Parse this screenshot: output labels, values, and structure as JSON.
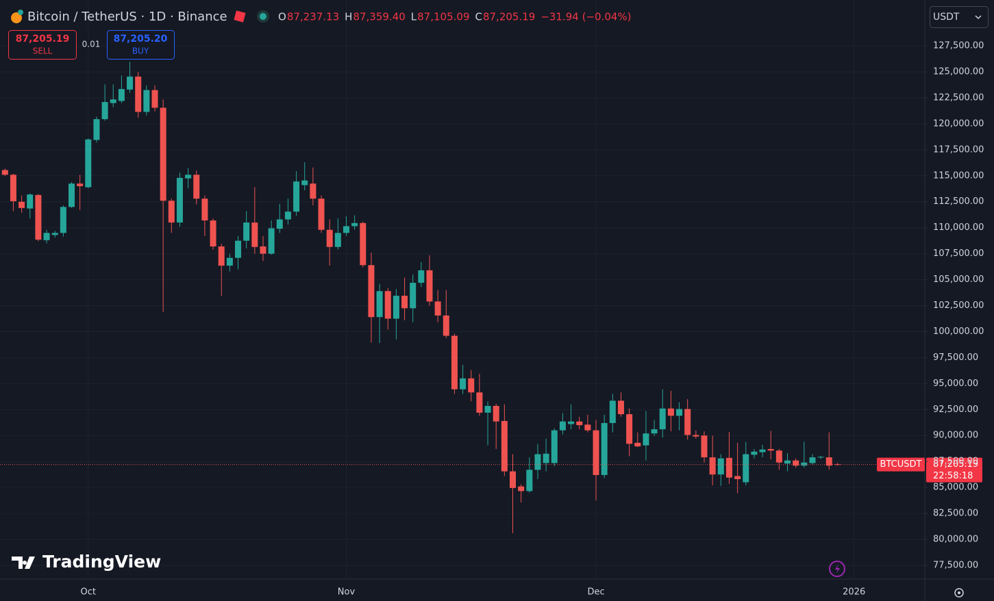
{
  "header": {
    "title": "Bitcoin / TetherUS · 1D · Binance",
    "ohlc": [
      {
        "letter": "O",
        "value": "87,237.13"
      },
      {
        "letter": "H",
        "value": "87,359.40"
      },
      {
        "letter": "L",
        "value": "87,105.09"
      },
      {
        "letter": "C",
        "value": "87,205.19"
      }
    ],
    "change": "−31.94 (−0.04%)",
    "currency": "USDT"
  },
  "trade": {
    "sell_price": "87,205.19",
    "sell": "SELL",
    "spread": "0.01",
    "buy_price": "87,205.20",
    "buy": "BUY"
  },
  "price_tag": {
    "symbol": "BTCUSDT",
    "price": "87,205.19",
    "countdown": "22:58:18"
  },
  "logo": "TradingView",
  "chart_data": {
    "type": "candlestick",
    "up_color": "#26a69a",
    "down_color": "#ef5350",
    "grid": true,
    "ylim": [
      76180,
      131920
    ],
    "yticks": [
      {
        "value": 77500,
        "label": "77,500.00"
      },
      {
        "value": 80000,
        "label": "80,000.00"
      },
      {
        "value": 82500,
        "label": "82,500.00"
      },
      {
        "value": 85000,
        "label": "85,000.00"
      },
      {
        "value": 87500,
        "label": "87,500.00"
      },
      {
        "value": 90000,
        "label": "90,000.00"
      },
      {
        "value": 92500,
        "label": "92,500.00"
      },
      {
        "value": 95000,
        "label": "95,000.00"
      },
      {
        "value": 97500,
        "label": "97,500.00"
      },
      {
        "value": 100000,
        "label": "100,000.00"
      },
      {
        "value": 102500,
        "label": "102,500.00"
      },
      {
        "value": 105000,
        "label": "105,000.00"
      },
      {
        "value": 107500,
        "label": "107,500.00"
      },
      {
        "value": 110000,
        "label": "110,000.00"
      },
      {
        "value": 112500,
        "label": "112,500.00"
      },
      {
        "value": 115000,
        "label": "115,000.00"
      },
      {
        "value": 117500,
        "label": "117,500.00"
      },
      {
        "value": 120000,
        "label": "120,000.00"
      },
      {
        "value": 122500,
        "label": "122,500.00"
      },
      {
        "value": 125000,
        "label": "125,000.00"
      },
      {
        "value": 127500,
        "label": "127,500.00"
      }
    ],
    "xlim": [
      -0.6,
      110.5
    ],
    "xticks": [
      {
        "value": 10,
        "label": "Oct"
      },
      {
        "value": 41,
        "label": "Nov"
      },
      {
        "value": 71,
        "label": "Dec"
      },
      {
        "value": 102,
        "label": "2026"
      }
    ],
    "open": [
      115550,
      115100,
      112500,
      111850,
      113150,
      108800,
      109300,
      109500,
      112000,
      114250,
      113900,
      118450,
      120450,
      122000,
      122200,
      123300,
      124550,
      121150,
      123250,
      121550,
      112600,
      110500,
      114750,
      115100,
      112800,
      110700,
      108200,
      106350,
      107100,
      108750,
      110500,
      108200,
      107500,
      109900,
      110800,
      111550,
      114100,
      114250,
      112800,
      109800,
      108150,
      109500,
      110150,
      110450,
      106400,
      101400,
      103900,
      101250,
      103450,
      102250,
      104700,
      105900,
      102900,
      101550,
      99600,
      94450,
      95500,
      94150,
      92200,
      92850,
      91400,
      86550,
      85100,
      84650,
      86700,
      87350,
      87350,
      90500,
      91100,
      91350,
      91050,
      90500,
      86200,
      91200,
      93350,
      92050,
      89300,
      89050,
      90200,
      90600,
      92600,
      91900,
      92550,
      90050,
      90000,
      87900,
      86250,
      87850,
      86100,
      85500,
      88150,
      88400,
      88700,
      88550,
      87300,
      87600,
      87100,
      87350,
      87900,
      87900,
      87237.13
    ],
    "high": [
      115700,
      115200,
      113100,
      113300,
      113250,
      109800,
      109700,
      112150,
      114400,
      115100,
      118600,
      120700,
      123800,
      123800,
      124650,
      125980,
      125000,
      123700,
      123700,
      122350,
      112800,
      115300,
      115750,
      115500,
      113100,
      110900,
      108450,
      107500,
      109200,
      111600,
      113900,
      109200,
      110700,
      112300,
      112800,
      115450,
      116300,
      115800,
      113100,
      110800,
      110900,
      111100,
      111200,
      110600,
      107600,
      104600,
      104200,
      104100,
      105200,
      105500,
      106700,
      107350,
      104000,
      104000,
      99800,
      96800,
      96300,
      95950,
      93300,
      93050,
      93000,
      88200,
      85300,
      87900,
      89200,
      89700,
      90700,
      92150,
      93000,
      91800,
      92000,
      91500,
      92000,
      94000,
      94150,
      92600,
      90300,
      92350,
      91500,
      94450,
      94300,
      93200,
      93500,
      90500,
      90400,
      90000,
      88200,
      90350,
      89300,
      89400,
      88700,
      89100,
      90450,
      88700,
      88300,
      87800,
      89400,
      88200,
      88050,
      90300,
      87359.4
    ],
    "low": [
      115000,
      111600,
      111450,
      110900,
      108700,
      108500,
      109050,
      109150,
      111900,
      111700,
      113800,
      118200,
      120300,
      121600,
      122000,
      123000,
      120600,
      120800,
      121200,
      101900,
      109500,
      110100,
      113800,
      112250,
      109200,
      107900,
      103450,
      105800,
      106000,
      108000,
      107500,
      106800,
      107400,
      109500,
      110300,
      111150,
      113600,
      112150,
      109500,
      106350,
      107900,
      109200,
      109800,
      106200,
      98950,
      98900,
      100200,
      99250,
      101100,
      100900,
      104300,
      102500,
      100900,
      99400,
      94000,
      94000,
      93300,
      91900,
      89050,
      88700,
      86100,
      80600,
      83550,
      84500,
      85800,
      86550,
      87050,
      90100,
      90600,
      90600,
      90300,
      83750,
      85900,
      90300,
      91800,
      88000,
      88900,
      87600,
      89950,
      89800,
      90400,
      90500,
      89600,
      89700,
      87400,
      85200,
      85150,
      85350,
      84450,
      85200,
      87800,
      87900,
      87700,
      86700,
      86550,
      86900,
      86900,
      87200,
      87750,
      86700,
      87105.09
    ],
    "close": [
      115100,
      112550,
      111900,
      113200,
      108850,
      109500,
      109500,
      112000,
      114250,
      114000,
      118500,
      120450,
      122100,
      122350,
      123350,
      124550,
      121150,
      123250,
      121550,
      112600,
      110500,
      114800,
      115100,
      112800,
      110700,
      108200,
      106350,
      107100,
      108750,
      110500,
      108150,
      107500,
      109950,
      110800,
      111550,
      114450,
      114550,
      112800,
      109800,
      108150,
      109500,
      110150,
      110450,
      106400,
      101400,
      103900,
      101250,
      103450,
      102250,
      104700,
      105900,
      102900,
      101550,
      99600,
      94450,
      95500,
      94150,
      92200,
      92850,
      91350,
      86550,
      84950,
      84650,
      86700,
      88200,
      88250,
      90500,
      91350,
      91350,
      91000,
      90500,
      86200,
      91200,
      93350,
      92050,
      89200,
      88950,
      90200,
      90600,
      92600,
      91900,
      92550,
      90050,
      89900,
      87900,
      86250,
      87800,
      85950,
      85800,
      88200,
      88450,
      88650,
      88550,
      87400,
      87600,
      87100,
      87400,
      87900,
      87950,
      87100,
      87205.19
    ]
  }
}
